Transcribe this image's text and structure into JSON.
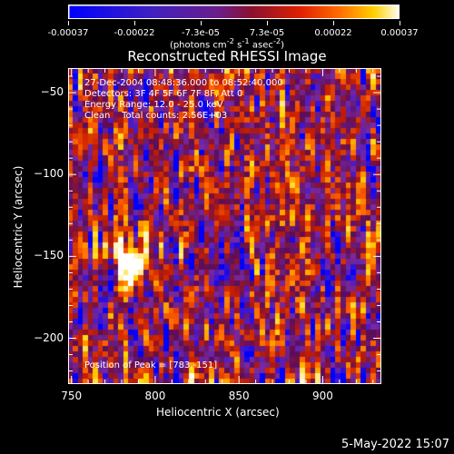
{
  "colorbar": {
    "ticks": [
      "-0.00037",
      "-0.00022",
      "-7.3e-05",
      "7.3e-05",
      "0.00022",
      "0.00037"
    ],
    "units_main": "(photons cm",
    "units_sup1": "-2",
    "units_mid1": " s",
    "units_sup2": "-1",
    "units_mid2": " asec",
    "units_sup3": "-2",
    "units_end": ")"
  },
  "title": "Reconstructed RHESSI Image",
  "info": {
    "line1": "27-Dec-2004 08:48:36.000 to 08:52:40.000",
    "line2": "Detectors: 3F 4F 5F 6F 7F 8F, Att 0",
    "line3": "Energy Range: 12.0 - 25.0 keV",
    "line4": "Clean    Total counts: 2.56E+03",
    "peak": "Position of Peak = [783,-151]"
  },
  "footer": {
    "date": "5-May-2022 15:07"
  },
  "chart_data": {
    "type": "heatmap",
    "title": "Reconstructed RHESSI Image",
    "xlabel": "Heliocentric X (arcsec)",
    "ylabel": "Heliocentric Y (arcsec)",
    "xlim": [
      748,
      935
    ],
    "ylim": [
      -228,
      -35
    ],
    "xticks": [
      750,
      800,
      850,
      900
    ],
    "yticks": [
      -50,
      -100,
      -150,
      -200
    ],
    "value_range": [
      -0.00037,
      0.00037
    ],
    "colormap": [
      "#0000ff",
      "#7a2aa0",
      "#5a0d5a",
      "#c81e00",
      "#ff6400",
      "#ffd700",
      "#ffffff"
    ],
    "peak": [
      783,
      -151
    ],
    "grid": false
  }
}
